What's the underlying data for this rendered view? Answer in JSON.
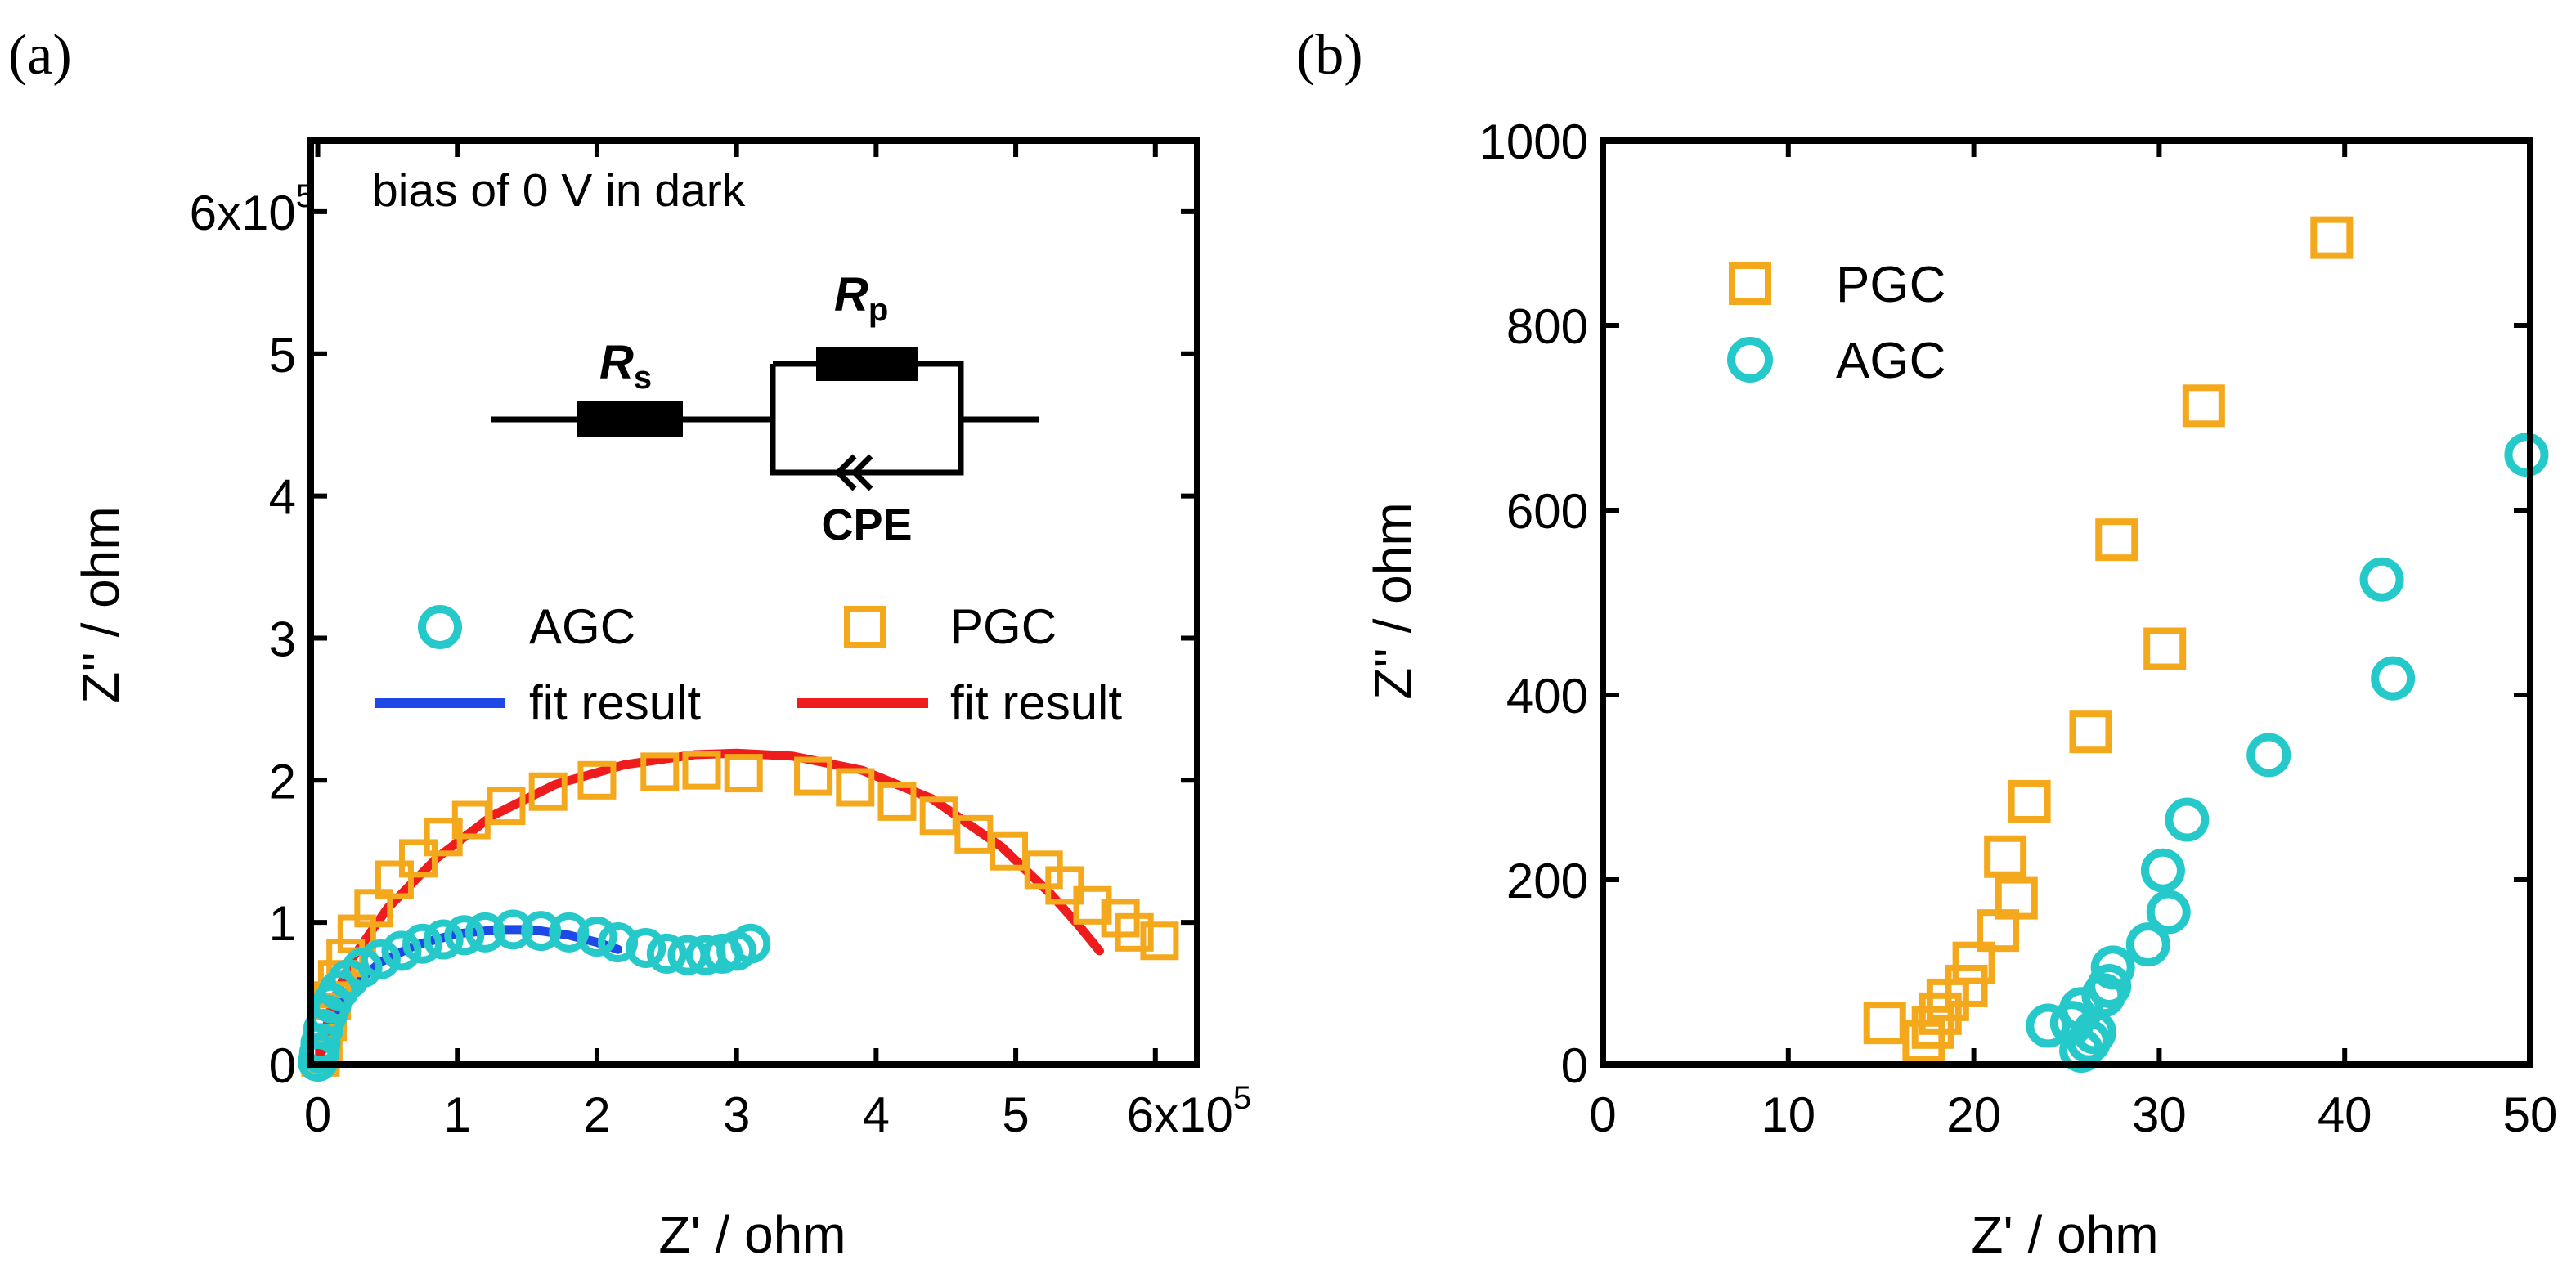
{
  "figure": {
    "panel_labels": [
      "(a)",
      "(b)"
    ]
  },
  "colors": {
    "agc": "#26c9c9",
    "pgc": "#f4a81c",
    "fit_agc": "#1f49e6",
    "fit_pgc": "#ee1c1c"
  },
  "chart_data": [
    {
      "type": "scatter",
      "panel": "(a)",
      "xlabel": "Z' / ohm",
      "ylabel": "Z'' / ohm",
      "xlim": [
        -0.05,
        6.3
      ],
      "ylim": [
        0,
        6.5
      ],
      "scale": "x10^5",
      "x_ticks": [
        0,
        1,
        2,
        3,
        4,
        5,
        6
      ],
      "x_tick_labels": [
        "0",
        "1",
        "2",
        "3",
        "4",
        "5",
        "6x10"
      ],
      "x_tick_exponent": "5",
      "y_ticks": [
        0,
        1,
        2,
        3,
        4,
        5,
        6
      ],
      "y_tick_labels": [
        "0",
        "1",
        "2",
        "3",
        "4",
        "5",
        "6x10"
      ],
      "y_tick_exponent": "5",
      "annotation": "bias of 0 V in dark",
      "circuit": {
        "rs_main": "R",
        "rs_sub": "s",
        "rp_main": "R",
        "rp_sub": "p",
        "cpe": "CPE"
      },
      "legend": [
        {
          "label": "AGC",
          "marker": "circle",
          "color": "#26c9c9"
        },
        {
          "label": "PGC",
          "marker": "square",
          "color": "#f4a81c"
        },
        {
          "label": "fit result",
          "line": true,
          "color": "#1f49e6"
        },
        {
          "label": "fit result",
          "line": true,
          "color": "#ee1c1c"
        }
      ],
      "series": [
        {
          "name": "PGC",
          "marker": "square",
          "color": "#f4a81c",
          "x": [
            0.02,
            0.04,
            0.07,
            0.1,
            0.14,
            0.2,
            0.28,
            0.4,
            0.55,
            0.72,
            0.9,
            1.1,
            1.35,
            1.65,
            2.0,
            2.45,
            2.75,
            3.05,
            3.55,
            3.85,
            4.15,
            4.45,
            4.7,
            4.95,
            5.2,
            5.35,
            5.55,
            5.75,
            5.85,
            6.03
          ],
          "y": [
            0.05,
            0.15,
            0.3,
            0.45,
            0.6,
            0.75,
            0.92,
            1.1,
            1.3,
            1.45,
            1.6,
            1.72,
            1.82,
            1.92,
            2.0,
            2.06,
            2.07,
            2.05,
            2.03,
            1.95,
            1.85,
            1.75,
            1.62,
            1.5,
            1.37,
            1.26,
            1.12,
            1.03,
            0.93,
            0.87
          ]
        },
        {
          "name": "AGC",
          "marker": "circle",
          "color": "#26c9c9",
          "x": [
            0.0,
            0.01,
            0.02,
            0.04,
            0.07,
            0.1,
            0.15,
            0.22,
            0.32,
            0.45,
            0.6,
            0.75,
            0.9,
            1.05,
            1.2,
            1.4,
            1.6,
            1.8,
            2.0,
            2.15,
            2.35,
            2.5,
            2.65,
            2.78,
            2.9,
            3.0,
            3.1
          ],
          "y": [
            0.02,
            0.08,
            0.15,
            0.25,
            0.35,
            0.43,
            0.52,
            0.6,
            0.68,
            0.74,
            0.8,
            0.85,
            0.88,
            0.91,
            0.93,
            0.95,
            0.94,
            0.93,
            0.9,
            0.86,
            0.82,
            0.78,
            0.77,
            0.77,
            0.78,
            0.8,
            0.85
          ]
        },
        {
          "name": "fit result (AGC)",
          "line": true,
          "color": "#1f49e6",
          "x": [
            0.0,
            0.1,
            0.25,
            0.45,
            0.7,
            1.0,
            1.3,
            1.45,
            1.6,
            1.8,
            2.0,
            2.15
          ],
          "y": [
            0.0,
            0.33,
            0.55,
            0.72,
            0.84,
            0.92,
            0.95,
            0.95,
            0.94,
            0.91,
            0.86,
            0.81
          ]
        },
        {
          "name": "fit result (PGC)",
          "line": true,
          "color": "#ee1c1c",
          "x": [
            0.0,
            0.1,
            0.25,
            0.5,
            0.85,
            1.25,
            1.7,
            2.2,
            2.7,
            3.0,
            3.4,
            3.9,
            4.4,
            4.9,
            5.25,
            5.45,
            5.6
          ],
          "y": [
            0.0,
            0.42,
            0.75,
            1.1,
            1.45,
            1.75,
            1.97,
            2.11,
            2.18,
            2.19,
            2.17,
            2.07,
            1.87,
            1.53,
            1.2,
            0.98,
            0.8
          ]
        }
      ]
    },
    {
      "type": "scatter",
      "panel": "(b)",
      "xlabel": "Z' / ohm",
      "ylabel": "Z'' / ohm",
      "xlim": [
        0,
        50
      ],
      "ylim": [
        0,
        1000
      ],
      "x_ticks": [
        0,
        10,
        20,
        30,
        40,
        50
      ],
      "x_tick_labels": [
        "0",
        "10",
        "20",
        "30",
        "40",
        "50"
      ],
      "y_ticks": [
        0,
        200,
        400,
        600,
        800,
        1000
      ],
      "y_tick_labels": [
        "0",
        "200",
        "400",
        "600",
        "800",
        "1000"
      ],
      "legend": [
        {
          "label": "PGC",
          "marker": "square",
          "color": "#f4a81c"
        },
        {
          "label": "AGC",
          "marker": "circle",
          "color": "#26c9c9"
        }
      ],
      "series": [
        {
          "name": "PGC",
          "marker": "square",
          "color": "#f4a81c",
          "x": [
            15.2,
            17.3,
            17.8,
            18.2,
            18.6,
            19.6,
            20.0,
            21.3,
            21.7,
            22.3,
            23.0,
            26.3,
            30.3,
            27.7,
            32.4,
            39.3
          ],
          "y": [
            45,
            25,
            40,
            55,
            70,
            85,
            110,
            145,
            225,
            180,
            285,
            360,
            450,
            568,
            713,
            895
          ]
        },
        {
          "name": "AGC",
          "marker": "circle",
          "color": "#26c9c9",
          "x": [
            25.8,
            26.2,
            26.5,
            25.3,
            24.0,
            25.8,
            27.0,
            27.3,
            27.5,
            29.4,
            30.5,
            30.2,
            31.5,
            35.9,
            42.6,
            42.0,
            49.8
          ],
          "y": [
            15,
            25,
            35,
            45,
            42,
            60,
            75,
            85,
            105,
            130,
            165,
            210,
            265,
            335,
            418,
            525,
            660
          ]
        }
      ]
    }
  ]
}
